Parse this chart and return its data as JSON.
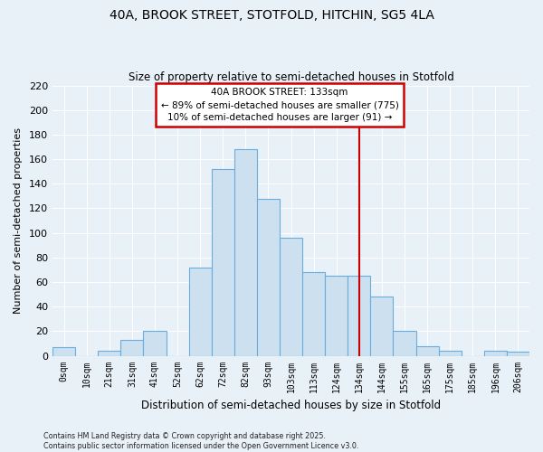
{
  "title_line1": "40A, BROOK STREET, STOTFOLD, HITCHIN, SG5 4LA",
  "title_line2": "Size of property relative to semi-detached houses in Stotfold",
  "xlabel": "Distribution of semi-detached houses by size in Stotfold",
  "ylabel": "Number of semi-detached properties",
  "bar_labels": [
    "0sqm",
    "10sqm",
    "21sqm",
    "31sqm",
    "41sqm",
    "52sqm",
    "62sqm",
    "72sqm",
    "82sqm",
    "93sqm",
    "103sqm",
    "113sqm",
    "124sqm",
    "134sqm",
    "144sqm",
    "155sqm",
    "165sqm",
    "175sqm",
    "185sqm",
    "196sqm",
    "206sqm"
  ],
  "bar_values": [
    7,
    0,
    4,
    13,
    20,
    0,
    72,
    152,
    168,
    128,
    96,
    68,
    65,
    65,
    48,
    20,
    8,
    4,
    0,
    4,
    3
  ],
  "bar_color": "#cce0f0",
  "bar_edge_color": "#6aacdc",
  "vline_x_idx": 13,
  "vline_color": "#cc0000",
  "annotation_title": "40A BROOK STREET: 133sqm",
  "annotation_line1": "← 89% of semi-detached houses are smaller (775)",
  "annotation_line2": "10% of semi-detached houses are larger (91) →",
  "annotation_box_color": "white",
  "annotation_box_edge_color": "#cc0000",
  "ylim": [
    0,
    220
  ],
  "yticks": [
    0,
    20,
    40,
    60,
    80,
    100,
    120,
    140,
    160,
    180,
    200,
    220
  ],
  "footnote1": "Contains HM Land Registry data © Crown copyright and database right 2025.",
  "footnote2": "Contains public sector information licensed under the Open Government Licence v3.0.",
  "bg_color": "#e8f0f8",
  "grid_color": "#ffffff"
}
